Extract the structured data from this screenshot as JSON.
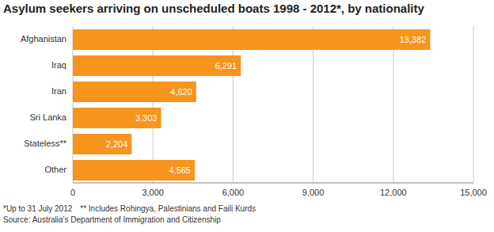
{
  "chart_data": {
    "type": "bar",
    "title": "Asylum seekers arriving on unscheduled boats 1998 - 2012*, by nationality",
    "orientation": "horizontal",
    "categories": [
      "Afghanistan",
      "Iraq",
      "Iran",
      "Sri Lanka",
      "Stateless**",
      "Other"
    ],
    "values": [
      13382,
      6291,
      4620,
      3303,
      2204,
      4565
    ],
    "value_labels": [
      "13,382",
      "6,291",
      "4,620",
      "3,303",
      "2,204",
      "4,565"
    ],
    "data_labels": true,
    "color": "#f7941e",
    "xlim": [
      0,
      15000
    ],
    "xticks": [
      0,
      {
        "value": 3000,
        "label": "3,000"
      },
      {
        "value": 6000,
        "label": "6,000"
      },
      {
        "value": 9000,
        "label": "9,000"
      },
      {
        "value": 12000,
        "label": "12,000"
      },
      {
        "value": 15000,
        "label": "15,000"
      }
    ],
    "grid": true,
    "annotations": [
      "*Up to 31 July 2012",
      "** Includes Rohingya, Palestinians and Faili Kurds",
      "Source: Australia's Department of Immigration and Citizenship"
    ]
  }
}
